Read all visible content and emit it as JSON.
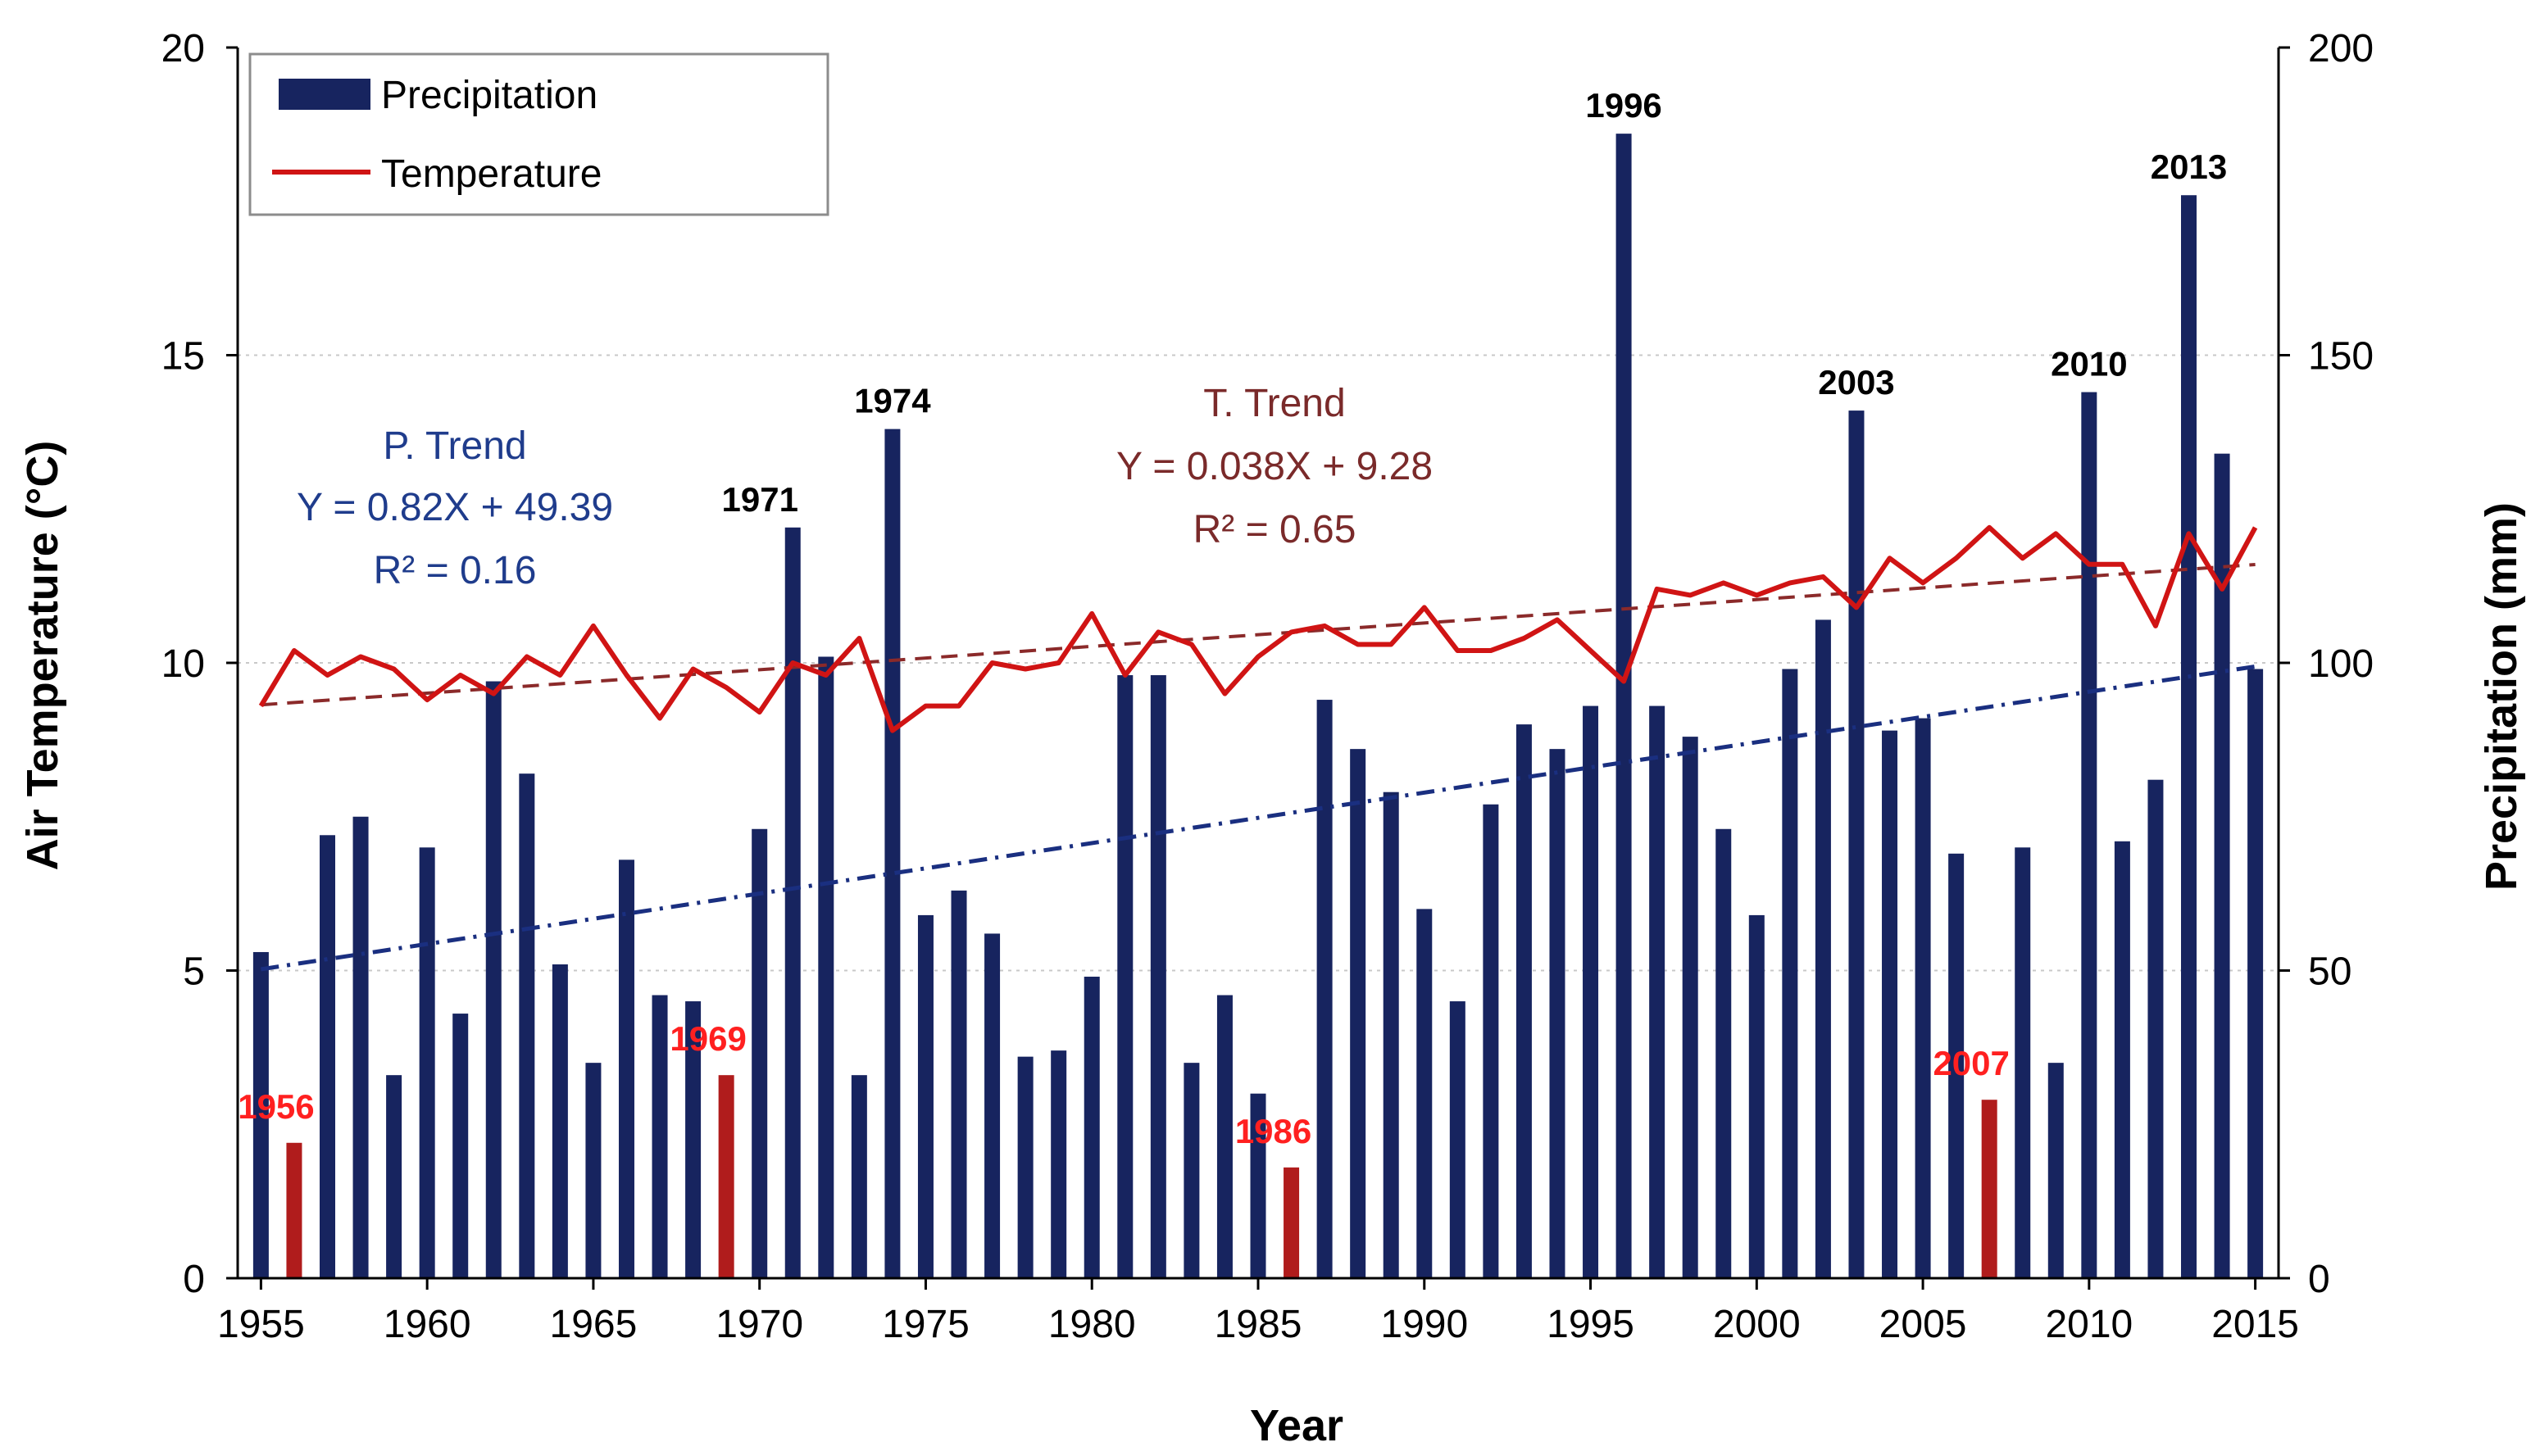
{
  "colors": {
    "bar": "#17245f",
    "bar_low": "#b01c1c",
    "temp_line": "#d01414",
    "temp_trend": "#8b2a2a",
    "precip_trend": "#1a2f80",
    "p_trend_text": "#1f3c8c",
    "t_trend_text": "#7a2a2a",
    "low_label": "#ff2020",
    "grid": "#c8c8c8"
  },
  "chart_data": {
    "type": "bar",
    "title": "",
    "xlabel": "Year",
    "ylabel_left": "Air Temperature (°C)",
    "ylabel_right": "Precipitation (mm)",
    "xlim": [
      1955,
      2015
    ],
    "ylim_left": [
      0,
      20
    ],
    "ylim_right": [
      0,
      200
    ],
    "x_ticks": [
      "1955",
      "1960",
      "1965",
      "1970",
      "1975",
      "1980",
      "1985",
      "1990",
      "1995",
      "2000",
      "2005",
      "2010",
      "2015"
    ],
    "y_ticks_left": [
      "0",
      "5",
      "10",
      "15",
      "20"
    ],
    "y_ticks_right": [
      "0",
      "50",
      "100",
      "150",
      "200"
    ],
    "grid": "horizontal dotted at major ticks",
    "legend_position": "top-left",
    "legend": [
      {
        "name": "Precipitation",
        "symbol": "bar"
      },
      {
        "name": "Temperature",
        "symbol": "line"
      }
    ],
    "years": [
      1955,
      1956,
      1957,
      1958,
      1959,
      1960,
      1961,
      1962,
      1963,
      1964,
      1965,
      1966,
      1967,
      1968,
      1969,
      1970,
      1971,
      1972,
      1973,
      1974,
      1975,
      1976,
      1977,
      1978,
      1979,
      1980,
      1981,
      1982,
      1983,
      1984,
      1985,
      1986,
      1987,
      1988,
      1989,
      1990,
      1991,
      1992,
      1993,
      1994,
      1995,
      1996,
      1997,
      1998,
      1999,
      2000,
      2001,
      2002,
      2003,
      2004,
      2005,
      2006,
      2007,
      2008,
      2009,
      2010,
      2011,
      2012,
      2013,
      2014,
      2015
    ],
    "series": [
      {
        "name": "Precipitation",
        "axis": "right",
        "unit": "mm",
        "values": [
          53,
          22,
          72,
          75,
          33,
          70,
          43,
          97,
          82,
          51,
          35,
          68,
          46,
          45,
          33,
          73,
          122,
          101,
          33,
          138,
          59,
          63,
          56,
          36,
          37,
          49,
          98,
          98,
          35,
          46,
          30,
          18,
          94,
          86,
          79,
          60,
          45,
          77,
          90,
          86,
          93,
          186,
          93,
          88,
          73,
          59,
          99,
          107,
          141,
          89,
          91,
          69,
          29,
          70,
          35,
          144,
          71,
          81,
          176,
          134,
          99
        ],
        "low_years": [
          1956,
          1969,
          1986,
          2007
        ]
      },
      {
        "name": "Temperature",
        "axis": "left",
        "unit": "°C",
        "values": [
          9.3,
          10.2,
          9.8,
          10.1,
          9.9,
          9.4,
          9.8,
          9.5,
          10.1,
          9.8,
          10.6,
          9.8,
          9.1,
          9.9,
          9.6,
          9.2,
          10.0,
          9.8,
          10.4,
          8.9,
          9.3,
          9.3,
          10.0,
          9.9,
          10.0,
          10.8,
          9.8,
          10.5,
          10.3,
          9.5,
          10.1,
          10.5,
          10.6,
          10.3,
          10.3,
          10.9,
          10.2,
          10.2,
          10.4,
          10.7,
          10.2,
          9.7,
          11.2,
          11.1,
          11.3,
          11.1,
          11.3,
          11.4,
          10.9,
          11.7,
          11.3,
          11.7,
          12.2,
          11.7,
          12.1,
          11.6,
          11.6,
          10.6,
          12.1,
          11.2,
          12.2
        ]
      }
    ],
    "trend_lines": [
      {
        "name": "P. Trend",
        "axis": "right",
        "equation": "Y = 0.82X + 49.39",
        "r2": "R² = 0.16",
        "slope": 0.82,
        "intercept": 49.39,
        "style": "dash-dot"
      },
      {
        "name": "T. Trend",
        "axis": "left",
        "equation": "Y = 0.038X + 9.28",
        "r2": "R² = 0.65",
        "slope": 0.038,
        "intercept": 9.28,
        "style": "dashed"
      }
    ],
    "annotations_high": [
      {
        "label": "1971",
        "year": 1971
      },
      {
        "label": "1974",
        "year": 1974
      },
      {
        "label": "1996",
        "year": 1996
      },
      {
        "label": "2003",
        "year": 2003
      },
      {
        "label": "2010",
        "year": 2010
      },
      {
        "label": "2013",
        "year": 2013
      }
    ],
    "annotations_low": [
      {
        "label": "1956",
        "year": 1956
      },
      {
        "label": "1969",
        "year": 1969
      },
      {
        "label": "1986",
        "year": 1986
      },
      {
        "label": "2007",
        "year": 2007
      }
    ]
  }
}
